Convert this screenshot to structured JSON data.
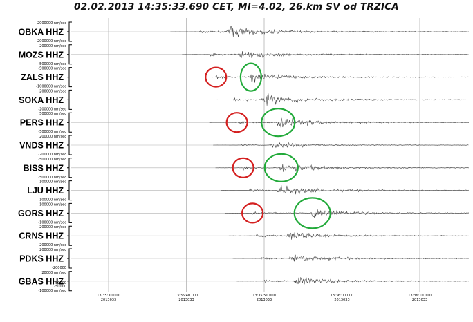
{
  "title": "02.02.2013 14:35:33.690 CET, Ml=4.02, 26.km SV od TRZICA",
  "chart_data": {
    "type": "line",
    "title": "02.02.2013 14:35:33.690 CET, Ml=4.02, 26.km SV od TRZICA",
    "xlabel": "",
    "ylabel": "",
    "grid": true,
    "x_ticks": [
      {
        "time": "13:35:30.000",
        "date": "2013033"
      },
      {
        "time": "13:35:40.000",
        "date": "2013033"
      },
      {
        "time": "13:35:50.000",
        "date": "2013033"
      },
      {
        "time": "13:36:00.000",
        "date": "2013033"
      },
      {
        "time": "13:36:10.000",
        "date": "2013033"
      }
    ],
    "xlim_seconds_after_tick0": [
      -5,
      46
    ],
    "series": [
      {
        "name": "OBKA HHZ",
        "amp_top": "2000000 nm/sec",
        "amp_bottom": "-2000000 nm/sec",
        "onset": 11.5,
        "p_marker": null,
        "s_marker": null,
        "level": 0.95
      },
      {
        "name": "MOZS HHZ",
        "amp_top": "200000 nm/sec",
        "amp_bottom": "-500000 nm/sec",
        "onset": 13.0,
        "p_marker": null,
        "s_marker": null,
        "level": 0.8
      },
      {
        "name": "ZALS HHZ",
        "amp_top": "-500000 nm/sec",
        "amp_bottom": "-1000000 nm/sec",
        "onset": 13.8,
        "p_marker": 13.8,
        "s_marker": 18.3,
        "level": 0.85
      },
      {
        "name": "SOKA HHZ",
        "amp_top": "200000 nm/sec",
        "amp_bottom": "-200000 nm/sec",
        "onset": 16.0,
        "p_marker": null,
        "s_marker": null,
        "level": 0.85
      },
      {
        "name": "PERS HHZ",
        "amp_top": "500000 nm/sec",
        "amp_bottom": "-500000 nm/sec",
        "onset": 16.5,
        "p_marker": 16.5,
        "s_marker": 21.8,
        "level": 0.85
      },
      {
        "name": "VNDS HHZ",
        "amp_top": "200000 nm/sec",
        "amp_bottom": "-200000 nm/sec",
        "onset": 17.0,
        "p_marker": null,
        "s_marker": null,
        "level": 0.55
      },
      {
        "name": "BISS HHZ",
        "amp_top": "-500000 nm/sec",
        "amp_bottom": "-500000 nm/sec",
        "onset": 17.3,
        "p_marker": 17.3,
        "s_marker": 22.2,
        "level": 0.85
      },
      {
        "name": "LJU HHZ",
        "amp_top": "100000 nm/sec",
        "amp_bottom": "-100000 nm/sec",
        "onset": 18.0,
        "p_marker": null,
        "s_marker": null,
        "level": 0.85
      },
      {
        "name": "GORS HHZ",
        "amp_top": "100000 nm/sec",
        "amp_bottom": "-100000 nm/sec",
        "onset": 18.5,
        "p_marker": 18.5,
        "s_marker": 26.2,
        "level": 0.9
      },
      {
        "name": "CRNS HHZ",
        "amp_top": "200000 nm/sec",
        "amp_bottom": "-200000 nm/sec",
        "onset": 19.0,
        "p_marker": null,
        "s_marker": null,
        "level": 0.8
      },
      {
        "name": "PDKS HHZ",
        "amp_top": "200000 nm/sec",
        "amp_bottom": "-200000",
        "onset": 19.5,
        "p_marker": null,
        "s_marker": null,
        "level": 0.75
      },
      {
        "name": "GBAS HHZ",
        "amp_top": "20000 nm/sec",
        "amp_bottom": "-100000 nm/sec",
        "extra_amp": [
          "-50000",
          "-50000"
        ],
        "onset": 20.0,
        "p_marker": null,
        "s_marker": null,
        "level": 0.7
      }
    ],
    "annotations": [
      {
        "type": "circle",
        "color": "red",
        "meaning": "P-wave onset"
      },
      {
        "type": "circle",
        "color": "green",
        "meaning": "S-wave onset"
      }
    ]
  },
  "colors": {
    "trace": "#444444",
    "grid": "#999999",
    "p_circle": "#d42020",
    "s_circle": "#22aa3a"
  }
}
